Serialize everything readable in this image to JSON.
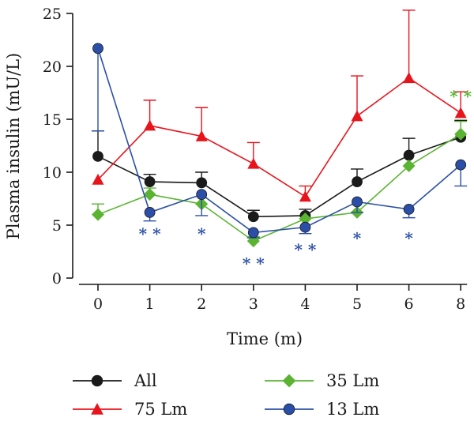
{
  "chart_data": {
    "type": "line",
    "xlabel": "Time (m)",
    "ylabel": "Plasma insulin (mU/L)",
    "ylim": [
      0,
      25
    ],
    "y_ticks": [
      0,
      5,
      10,
      15,
      20,
      25
    ],
    "x_ticks": [
      "0",
      "1",
      "2",
      "3",
      "4",
      "5",
      "6",
      "8"
    ],
    "x": [
      0,
      1,
      2,
      3,
      4,
      5,
      6,
      7
    ],
    "legend_position": "bottom",
    "series": [
      {
        "name": "All",
        "color": "#1a1a1a",
        "marker": "circle",
        "values": [
          11.5,
          9.1,
          9.0,
          5.8,
          5.9,
          9.1,
          11.6,
          13.3
        ],
        "error": [
          2.4,
          0.7,
          1.0,
          0.6,
          0.6,
          1.2,
          1.6,
          1.6
        ],
        "error_dir": [
          1,
          1,
          1,
          1,
          1,
          1,
          1,
          1
        ]
      },
      {
        "name": "75 Lm",
        "color": "#e8141c",
        "marker": "triangle",
        "values": [
          9.3,
          14.4,
          13.4,
          10.8,
          7.7,
          15.3,
          18.9,
          15.6
        ],
        "error": [
          0,
          2.4,
          2.7,
          2.0,
          1.0,
          3.8,
          6.4,
          2.0
        ],
        "error_dir": [
          1,
          1,
          1,
          1,
          1,
          1,
          1,
          1
        ]
      },
      {
        "name": "35 Lm",
        "color": "#5ab432",
        "marker": "diamond",
        "values": [
          6.0,
          7.9,
          7.0,
          3.5,
          5.6,
          6.2,
          10.6,
          13.6
        ],
        "error": [
          1.0,
          0.6,
          0,
          0.4,
          0,
          0,
          0,
          1.2
        ],
        "error_dir": [
          1,
          1,
          1,
          1,
          1,
          1,
          1,
          1
        ]
      },
      {
        "name": "13 Lm",
        "color": "#2b4fa8",
        "marker": "circle",
        "values": [
          21.7,
          6.2,
          7.9,
          4.3,
          4.8,
          7.2,
          6.5,
          10.7
        ],
        "error": [
          7.8,
          0.8,
          2.0,
          0.5,
          0.6,
          1.0,
          0.8,
          2.0
        ],
        "error_dir": [
          -1,
          -1,
          -1,
          -1,
          -1,
          -1,
          -1,
          -1
        ]
      }
    ],
    "annotations": [
      {
        "text": "**",
        "x": 1,
        "y": 4.4,
        "color": "#2b4fa8"
      },
      {
        "text": "*",
        "x": 2,
        "y": 4.4,
        "color": "#2b4fa8"
      },
      {
        "text": "**",
        "x": 3,
        "y": 1.6,
        "color": "#2b4fa8"
      },
      {
        "text": "**",
        "x": 4,
        "y": 2.9,
        "color": "#2b4fa8"
      },
      {
        "text": "*",
        "x": 5,
        "y": 4.0,
        "color": "#2b4fa8"
      },
      {
        "text": "*",
        "x": 6,
        "y": 4.0,
        "color": "#2b4fa8"
      },
      {
        "text": "**",
        "x": 7,
        "y": 17.4,
        "color": "#5ab432"
      }
    ]
  }
}
